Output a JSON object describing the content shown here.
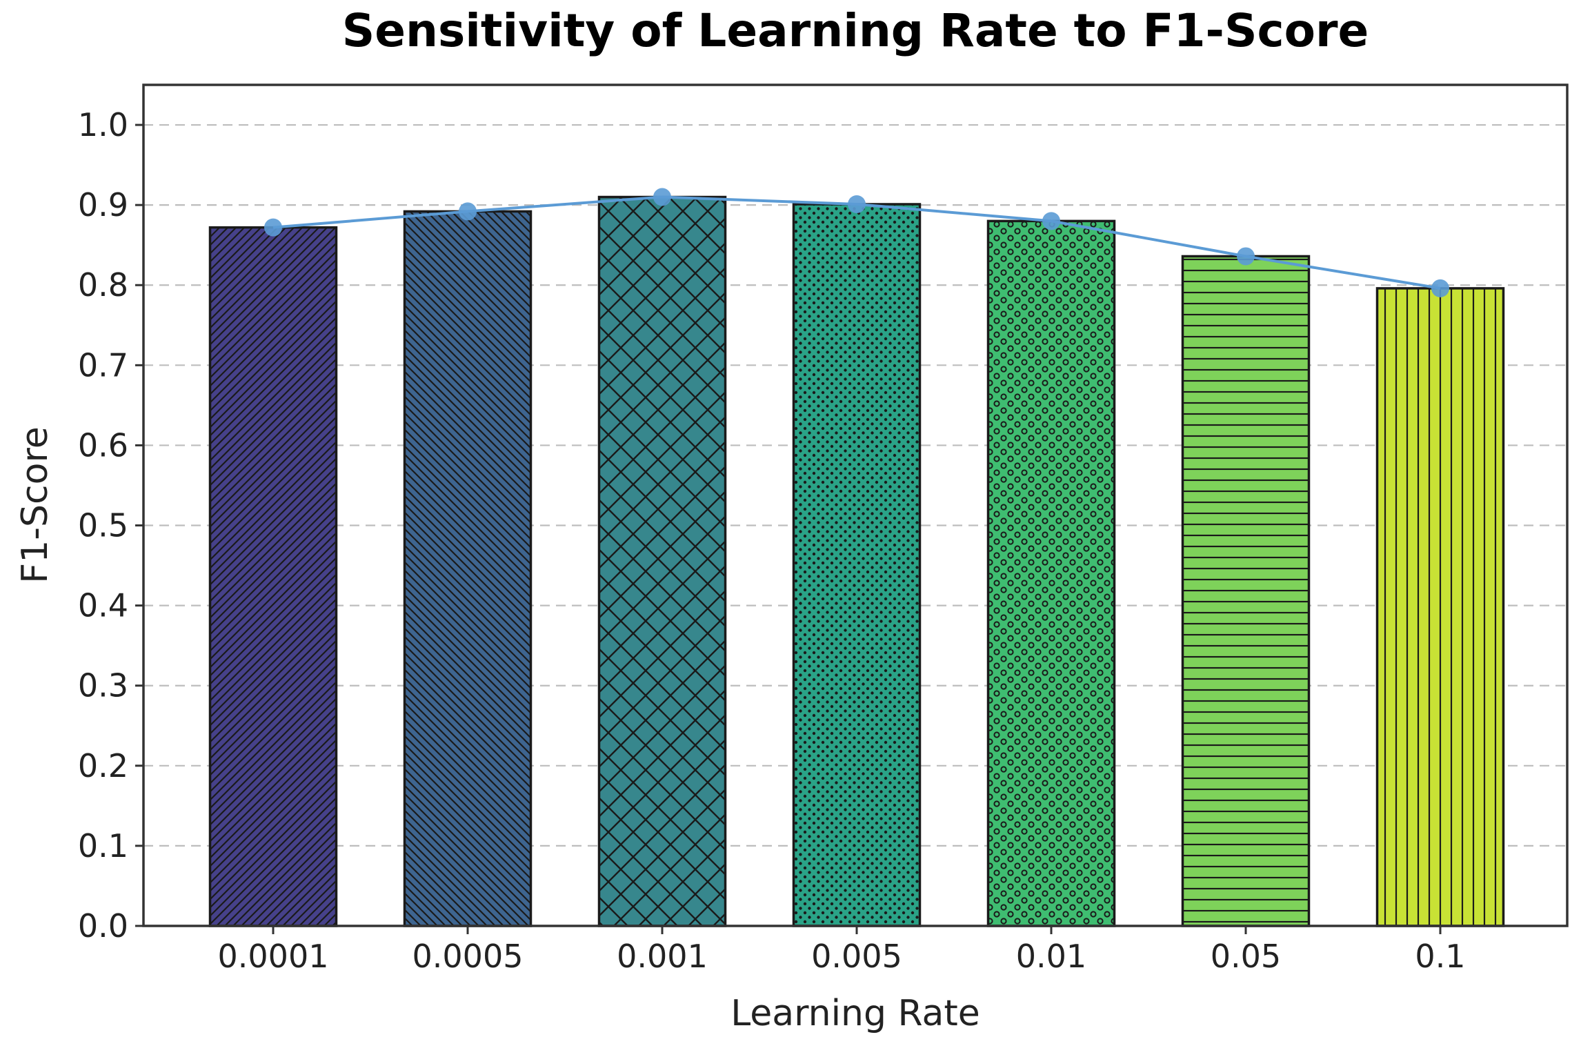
{
  "chart_data": {
    "type": "bar",
    "title": "Sensitivity of Learning Rate to F1-Score",
    "xlabel": "Learning Rate",
    "ylabel": "F1-Score",
    "categories": [
      "0.0001",
      "0.0005",
      "0.001",
      "0.005",
      "0.01",
      "0.05",
      "0.1"
    ],
    "values": [
      0.872,
      0.892,
      0.91,
      0.901,
      0.88,
      0.836,
      0.796
    ],
    "line_values": [
      0.872,
      0.892,
      0.91,
      0.901,
      0.88,
      0.836,
      0.796
    ],
    "ylim": [
      0,
      1.05
    ],
    "yticks": [
      "0.0",
      "0.1",
      "0.2",
      "0.3",
      "0.4",
      "0.5",
      "0.6",
      "0.7",
      "0.8",
      "0.9",
      "1.0"
    ],
    "grid": "horizontal dashed",
    "bar_colors": [
      "#46418a",
      "#3e6590",
      "#37878d",
      "#2aa387",
      "#3fbd71",
      "#7ed25a",
      "#c8e235"
    ],
    "bar_hatches": [
      "diagonal",
      "back-diagonal",
      "crosshatch",
      "small-dots",
      "dots",
      "horizontal",
      "vertical"
    ],
    "line_color": "#5b9bd5"
  }
}
